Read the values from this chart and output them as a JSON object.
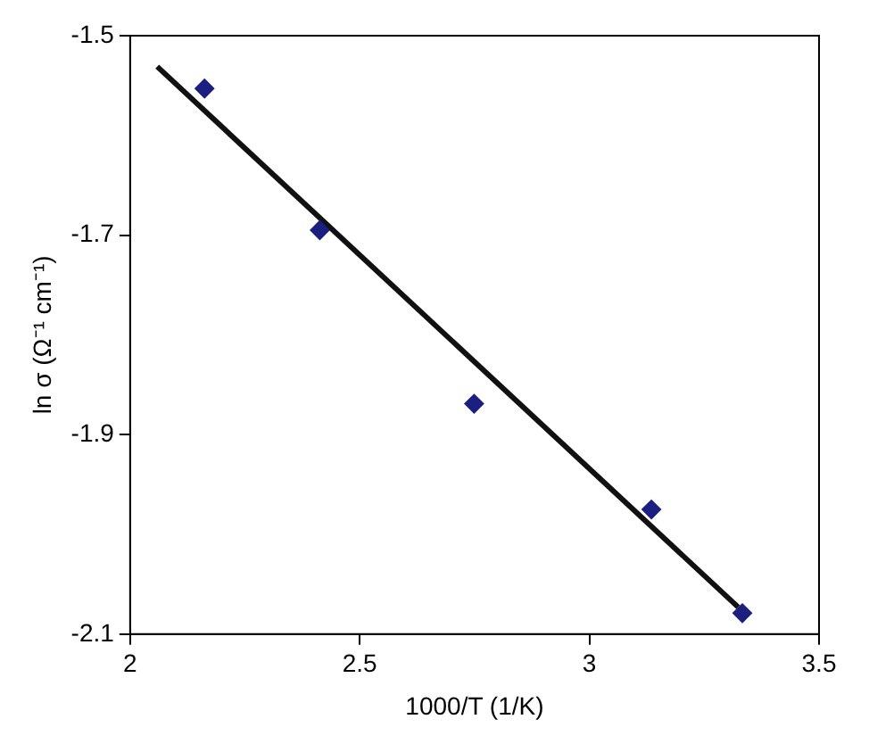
{
  "chart_data": {
    "type": "scatter",
    "xlabel": "1000/T (1/K)",
    "ylabel": "ln σ (Ω⁻¹ cm⁻¹)",
    "series": [
      {
        "type": "scatter",
        "color": "#1b1f80",
        "marker": "diamond",
        "x": [
          2.162,
          2.413,
          2.749,
          3.135,
          3.333
        ],
        "values": [
          -1.553,
          -1.695,
          -1.869,
          -1.975,
          -2.079
        ]
      },
      {
        "type": "line",
        "color": "#111111",
        "marker": "none",
        "line_style": "solid",
        "x": [
          2.059,
          3.324
        ],
        "values": [
          -1.531,
          -2.073
        ]
      }
    ],
    "xlim": [
      2,
      3.5
    ],
    "xticks": [
      2,
      2.5,
      3,
      3.5
    ],
    "ylim": [
      -2.1,
      -1.5
    ],
    "yticks": [
      -2.1,
      -1.9,
      -1.7,
      -1.5
    ],
    "grid": false,
    "legend": false
  }
}
